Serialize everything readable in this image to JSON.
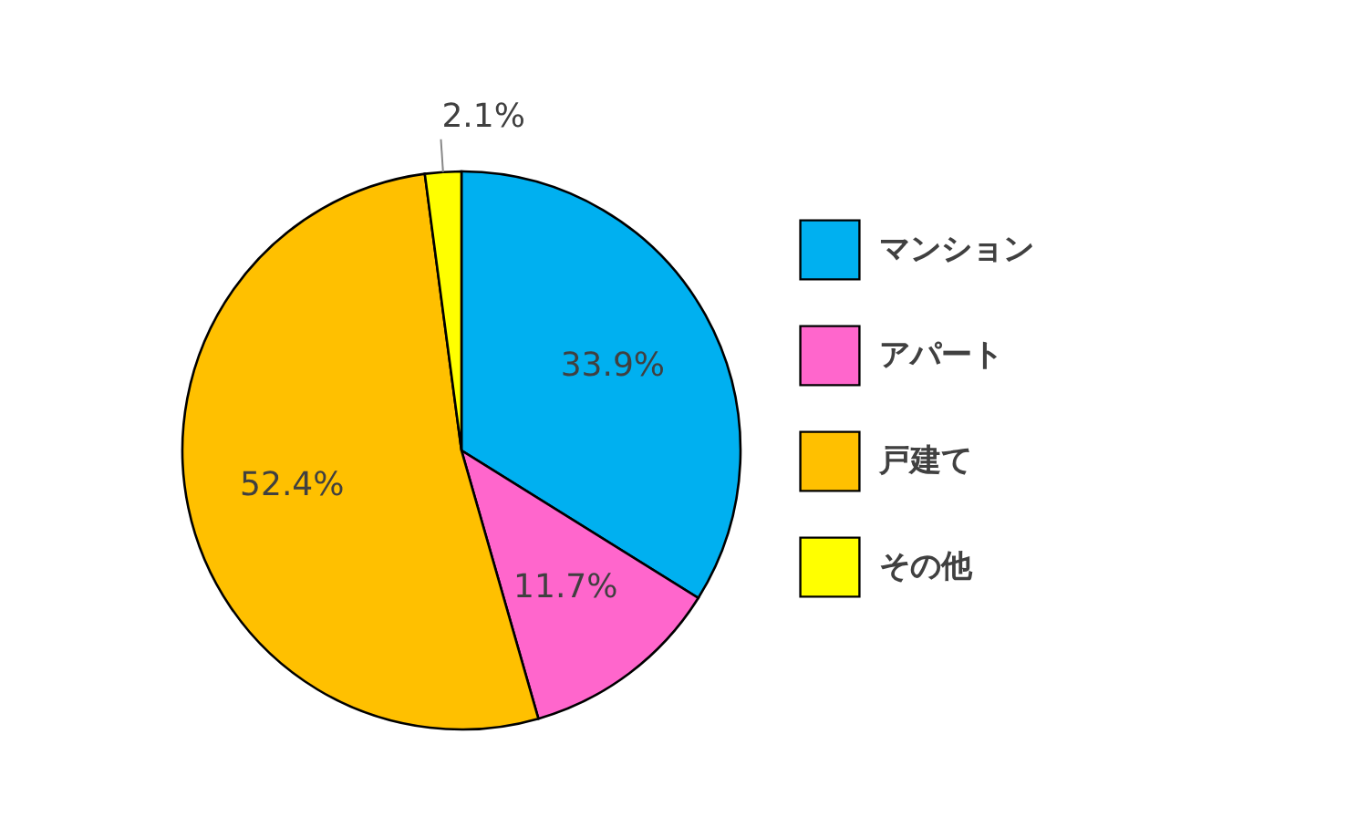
{
  "chart_data": {
    "type": "pie",
    "categories": [
      "マンション",
      "アパート",
      "戸建て",
      "その他"
    ],
    "values": [
      33.9,
      11.7,
      52.4,
      2.1
    ],
    "colors": [
      "#00b0f0",
      "#ff66cc",
      "#ffc000",
      "#ffff00"
    ],
    "value_labels": [
      "33.9%",
      "11.7%",
      "52.4%",
      "2.1%"
    ],
    "legend": "right"
  }
}
